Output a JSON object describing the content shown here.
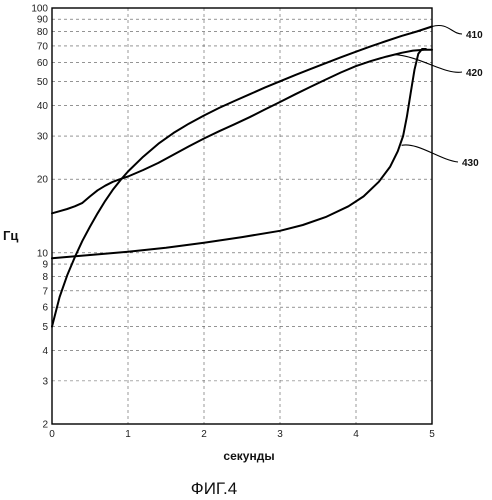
{
  "chart_data": {
    "type": "line",
    "ylabel": "Гц",
    "xlabel": "секунды",
    "caption": "ФИГ.4",
    "y_scale": "log",
    "xlim": [
      0,
      5
    ],
    "ylim": [
      2,
      100
    ],
    "grid": true,
    "x_ticks": [
      "0",
      "1",
      "2",
      "3",
      "4",
      "5"
    ],
    "y_ticks": [
      {
        "value": 2,
        "label": "2"
      },
      {
        "value": 3,
        "label": "3"
      },
      {
        "value": 4,
        "label": "4"
      },
      {
        "value": 5,
        "label": "5"
      },
      {
        "value": 6,
        "label": "6"
      },
      {
        "value": 7,
        "label": "7"
      },
      {
        "value": 8,
        "label": "8"
      },
      {
        "value": 9,
        "label": "9"
      },
      {
        "value": 10,
        "label": "10"
      },
      {
        "value": 20,
        "label": "20"
      },
      {
        "value": 30,
        "label": "30"
      },
      {
        "value": 40,
        "label": "40"
      },
      {
        "value": 50,
        "label": "50"
      },
      {
        "value": 60,
        "label": "60"
      },
      {
        "value": 70,
        "label": "70"
      },
      {
        "value": 80,
        "label": "80"
      },
      {
        "value": 90,
        "label": "90"
      },
      {
        "value": 100,
        "label": "100"
      }
    ],
    "series": [
      {
        "name": "410",
        "points": [
          [
            0,
            5
          ],
          [
            0.1,
            6.6
          ],
          [
            0.2,
            8.1
          ],
          [
            0.3,
            9.6
          ],
          [
            0.4,
            11.2
          ],
          [
            0.5,
            12.8
          ],
          [
            0.6,
            14.5
          ],
          [
            0.7,
            16.3
          ],
          [
            0.8,
            18.1
          ],
          [
            0.9,
            19.8
          ],
          [
            1.0,
            21.5
          ],
          [
            1.2,
            24.7
          ],
          [
            1.4,
            27.9
          ],
          [
            1.6,
            30.9
          ],
          [
            1.8,
            33.7
          ],
          [
            2.0,
            36.4
          ],
          [
            2.2,
            39.1
          ],
          [
            2.4,
            41.7
          ],
          [
            2.6,
            44.4
          ],
          [
            2.8,
            47.3
          ],
          [
            3.0,
            50.2
          ],
          [
            3.2,
            53.2
          ],
          [
            3.4,
            56.3
          ],
          [
            3.6,
            59.5
          ],
          [
            3.8,
            62.9
          ],
          [
            4.0,
            66.3
          ],
          [
            4.2,
            69.8
          ],
          [
            4.4,
            73.3
          ],
          [
            4.6,
            76.9
          ],
          [
            4.8,
            80.2
          ],
          [
            5.0,
            84
          ]
        ]
      },
      {
        "name": "420",
        "points": [
          [
            0,
            14.5
          ],
          [
            0.1,
            14.8
          ],
          [
            0.2,
            15.1
          ],
          [
            0.3,
            15.5
          ],
          [
            0.4,
            16
          ],
          [
            0.5,
            17
          ],
          [
            0.6,
            18
          ],
          [
            0.7,
            18.8
          ],
          [
            0.8,
            19.5
          ],
          [
            0.9,
            20
          ],
          [
            1.0,
            20.5
          ],
          [
            1.2,
            21.8
          ],
          [
            1.4,
            23.3
          ],
          [
            1.6,
            25.2
          ],
          [
            1.8,
            27.2
          ],
          [
            2.0,
            29.3
          ],
          [
            2.2,
            31.4
          ],
          [
            2.4,
            33.5
          ],
          [
            2.6,
            35.8
          ],
          [
            2.8,
            38.5
          ],
          [
            3.0,
            41.3
          ],
          [
            3.2,
            44.4
          ],
          [
            3.4,
            47.6
          ],
          [
            3.6,
            51
          ],
          [
            3.8,
            54.5
          ],
          [
            4.0,
            57.9
          ],
          [
            4.2,
            60.8
          ],
          [
            4.4,
            63.3
          ],
          [
            4.6,
            65.6
          ],
          [
            4.75,
            67
          ],
          [
            4.9,
            67.5
          ],
          [
            5.0,
            67.5
          ]
        ]
      },
      {
        "name": "430",
        "points": [
          [
            0,
            9.5
          ],
          [
            0.5,
            9.8
          ],
          [
            1.0,
            10.1
          ],
          [
            1.5,
            10.5
          ],
          [
            2.0,
            11.0
          ],
          [
            2.5,
            11.6
          ],
          [
            3.0,
            12.3
          ],
          [
            3.3,
            13.0
          ],
          [
            3.6,
            14.0
          ],
          [
            3.9,
            15.5
          ],
          [
            4.1,
            17.0
          ],
          [
            4.3,
            19.5
          ],
          [
            4.45,
            22.5
          ],
          [
            4.55,
            26
          ],
          [
            4.62,
            30
          ],
          [
            4.67,
            36
          ],
          [
            4.72,
            45
          ],
          [
            4.77,
            56
          ],
          [
            4.82,
            65
          ],
          [
            4.87,
            68
          ],
          [
            4.92,
            68
          ]
        ]
      }
    ]
  }
}
